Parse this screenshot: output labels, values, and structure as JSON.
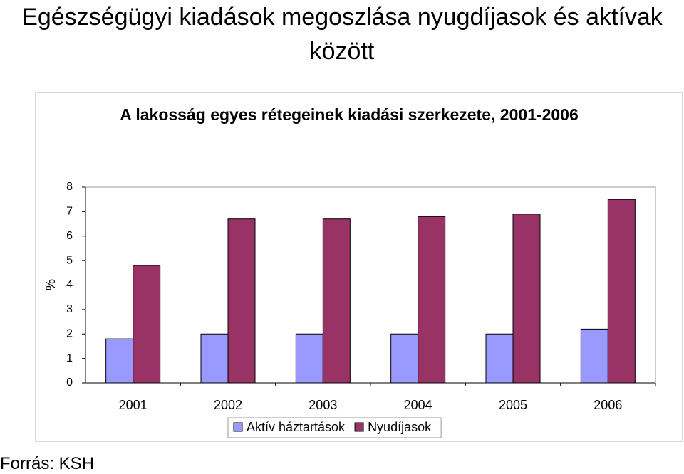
{
  "slide_title": "Egészségügyi kiadások megoszlása nyugdíjasok és aktívak között",
  "source": "Forrás: KSH",
  "chart_data": {
    "type": "bar",
    "title": "A lakosság egyes rétegeinek kiadási szerkezete, 2001-2006",
    "y_label": "%",
    "categories": [
      "2001",
      "2002",
      "2003",
      "2004",
      "2005",
      "2006"
    ],
    "series": [
      {
        "name": "Aktív háztartások",
        "color": "#9999ff",
        "values": [
          1.8,
          2.0,
          2.0,
          2.0,
          2.0,
          2.2
        ]
      },
      {
        "name": "Nyudíjasok",
        "color": "#993366",
        "values": [
          4.8,
          6.7,
          6.7,
          6.8,
          6.9,
          7.5
        ]
      }
    ],
    "ylim": [
      0,
      8
    ],
    "yticks": [
      0,
      1,
      2,
      3,
      4,
      5,
      6,
      7,
      8
    ],
    "legend": "bottom"
  }
}
